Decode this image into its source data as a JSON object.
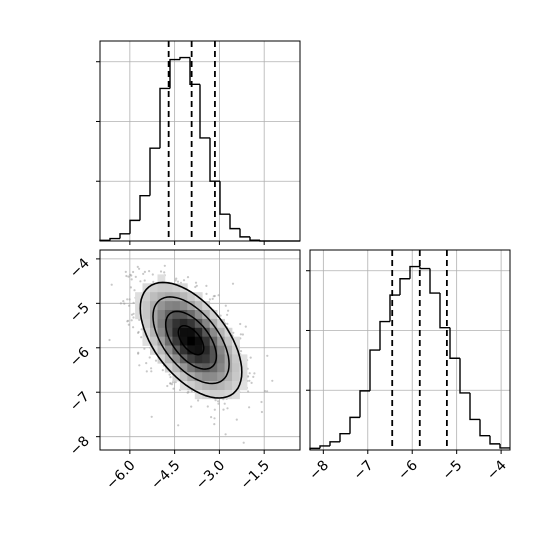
{
  "chart_data": {
    "type": "corner",
    "grid": true,
    "colors": {
      "line": "#000000",
      "grid": "#b0b0b0",
      "scatter": "#9a9a9a",
      "density_low": "#e0e0e0",
      "density_high": "#000000"
    },
    "parameters": [
      {
        "index": 0,
        "range": [
          -7.0,
          -0.3
        ],
        "ticks": [
          -6.0,
          -4.5,
          -3.0,
          -1.5
        ],
        "tick_labels": [
          "−6.0",
          "−4.5",
          "−3.0",
          "−1.5"
        ]
      },
      {
        "index": 1,
        "range": [
          -8.3,
          -3.8
        ],
        "ticks": [
          -8,
          -7,
          -6,
          -5,
          -4
        ],
        "tick_labels": [
          "−8",
          "−7",
          "−6",
          "−5",
          "−4"
        ]
      }
    ],
    "histogram_1": {
      "bin_edges": [
        -7.0,
        -6.665,
        -6.33,
        -5.995,
        -5.66,
        -5.325,
        -4.99,
        -4.655,
        -4.32,
        -3.985,
        -3.65,
        -3.315,
        -2.98,
        -2.645,
        -2.31,
        -1.975,
        -1.64,
        -1.305,
        -0.97,
        -0.635,
        -0.3
      ],
      "counts": [
        0.3,
        1.2,
        3.5,
        10,
        22,
        45,
        74,
        88,
        89,
        76,
        50,
        29,
        13,
        6,
        2,
        0.4,
        0,
        0,
        0,
        0
      ],
      "quantiles": [
        -4.7,
        -3.93,
        -3.15
      ]
    },
    "histogram_2": {
      "bin_edges": [
        -8.3,
        -8.075,
        -7.85,
        -7.625,
        -7.4,
        -7.175,
        -6.95,
        -6.725,
        -6.5,
        -6.275,
        -6.05,
        -5.825,
        -5.6,
        -5.375,
        -5.15,
        -4.925,
        -4.7,
        -4.475,
        -4.25,
        -4.025,
        -3.8
      ],
      "counts": [
        0.8,
        2,
        4,
        8,
        16,
        29,
        49,
        63,
        76,
        84,
        90,
        89,
        77,
        60,
        45,
        28,
        15,
        7,
        3,
        1
      ],
      "quantiles": [
        -6.45,
        -5.83,
        -5.22
      ]
    },
    "joint": {
      "mean": [
        -3.95,
        -5.83
      ],
      "std": [
        0.85,
        0.65
      ],
      "correlation": -0.55,
      "density_grid": {
        "x": [
          -5.7,
          -5.45,
          -5.2,
          -4.95,
          -4.7,
          -4.45,
          -4.2,
          -3.95,
          -3.7,
          -3.45,
          -3.2,
          -2.95,
          -2.7,
          -2.45,
          -2.2
        ],
        "y": [
          -4.45,
          -4.65,
          -4.85,
          -5.05,
          -5.25,
          -5.45,
          -5.65,
          -5.85,
          -6.05,
          -6.25,
          -6.45,
          -6.65,
          -6.85,
          -7.05,
          -7.25
        ],
        "cell_size": [
          0.25,
          0.2
        ]
      },
      "contour_levels": [
        0.118,
        0.393,
        0.675,
        0.865
      ]
    }
  }
}
